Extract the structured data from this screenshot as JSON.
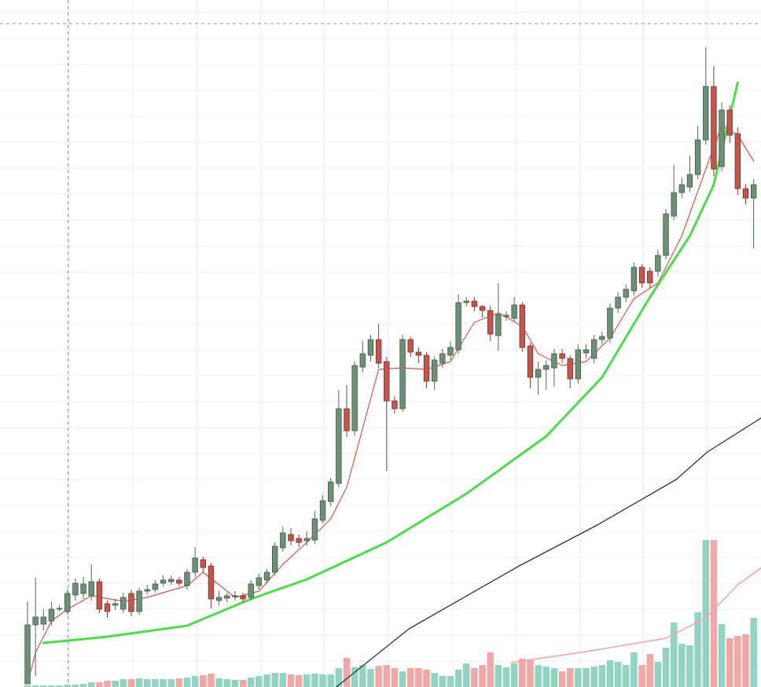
{
  "chart_data": {
    "type": "candlestick",
    "up_color": "#6e8f76",
    "down_color": "#c2554c",
    "up_volume_color": "#93d3c4",
    "down_volume_color": "#f0a8a6",
    "grid": true,
    "xlim": [
      -3.45,
      91.92
    ],
    "ylim": [
      0,
      874
    ],
    "xticks": [
      5.2,
      13.2,
      21.2,
      29.2,
      37.2,
      45.2,
      53.2,
      61.2,
      69.2,
      77.2,
      85.2
    ],
    "yticks": [
      33,
      66,
      99,
      132,
      165,
      198,
      231,
      264,
      297,
      330,
      363,
      396,
      429,
      462,
      495,
      528,
      561,
      594,
      627,
      660,
      693,
      726,
      759,
      792,
      825,
      858
    ],
    "crosshair": {
      "x": 5.1,
      "y": 844,
      "color": "#7a95a8"
    },
    "open": [
      4,
      79,
      80,
      84,
      99,
      96,
      117,
      119,
      116,
      134,
      106,
      104,
      99,
      119,
      96,
      122,
      124,
      132,
      134,
      136,
      129,
      146,
      162,
      154,
      110,
      113,
      115,
      116,
      114,
      129,
      136,
      146,
      177,
      194,
      189,
      186,
      187,
      212,
      236,
      259,
      354,
      326,
      407,
      422,
      442,
      414,
      364,
      354,
      442,
      426,
      422,
      389,
      412,
      422,
      429,
      489,
      491,
      484,
      479,
      447,
      471,
      469,
      486,
      434,
      394,
      404,
      406,
      424,
      418,
      392,
      425,
      418,
      442,
      444,
      482,
      496,
      504,
      534,
      529,
      529,
      549,
      599,
      629,
      636,
      652,
      696,
      764,
      662,
      734,
      704,
      634,
      622
    ],
    "high": [
      109,
      139,
      99,
      108,
      104,
      124,
      138,
      140,
      156,
      138,
      110,
      112,
      120,
      124,
      126,
      130,
      136,
      142,
      142,
      140,
      150,
      178,
      166,
      158,
      122,
      120,
      122,
      120,
      136,
      144,
      150,
      184,
      204,
      202,
      194,
      198,
      224,
      244,
      266,
      378,
      384,
      414,
      440,
      448,
      462,
      420,
      370,
      448,
      446,
      432,
      426,
      420,
      430,
      440,
      500,
      496,
      496,
      486,
      485,
      514,
      478,
      496,
      490,
      438,
      414,
      416,
      430,
      430,
      422,
      436,
      436,
      448,
      452,
      488,
      502,
      512,
      540,
      538,
      534,
      556,
      608,
      664,
      648,
      676,
      714,
      814,
      790,
      744,
      740,
      712,
      640,
      646
    ],
    "low": [
      4,
      14,
      72,
      78,
      96,
      92,
      110,
      112,
      110,
      94,
      88,
      98,
      94,
      90,
      92,
      118,
      120,
      128,
      130,
      128,
      124,
      140,
      146,
      100,
      104,
      108,
      110,
      108,
      110,
      124,
      132,
      142,
      172,
      180,
      178,
      180,
      182,
      208,
      230,
      254,
      318,
      320,
      400,
      414,
      406,
      275,
      348,
      350,
      420,
      412,
      380,
      378,
      406,
      416,
      424,
      484,
      478,
      470,
      440,
      428,
      466,
      464,
      426,
      380,
      372,
      378,
      382,
      412,
      380,
      386,
      418,
      412,
      436,
      438,
      476,
      490,
      498,
      508,
      508,
      522,
      544,
      594,
      622,
      630,
      646,
      690,
      650,
      656,
      692,
      626,
      614,
      558
    ],
    "close": [
      79,
      89,
      89,
      99,
      100,
      119,
      132,
      131,
      134,
      99,
      96,
      106,
      114,
      96,
      122,
      124,
      131,
      136,
      137,
      132,
      146,
      164,
      152,
      112,
      114,
      116,
      116,
      112,
      131,
      139,
      146,
      179,
      196,
      186,
      184,
      189,
      214,
      237,
      261,
      354,
      326,
      409,
      424,
      442,
      412,
      364,
      354,
      442,
      426,
      422,
      389,
      416,
      424,
      432,
      489,
      491,
      484,
      479,
      449,
      474,
      473,
      486,
      432,
      394,
      404,
      409,
      424,
      418,
      392,
      429,
      429,
      442,
      446,
      482,
      496,
      506,
      534,
      514,
      514,
      549,
      602,
      629,
      639,
      652,
      696,
      764,
      659,
      734,
      702,
      634,
      622,
      639
    ],
    "volume": [
      2,
      2,
      2,
      2,
      2,
      3,
      3,
      4,
      6,
      6,
      8,
      8,
      10,
      10,
      11,
      10,
      10,
      10,
      10,
      11,
      12,
      14,
      15,
      17,
      11,
      10,
      9,
      9,
      12,
      14,
      16,
      18,
      18,
      16,
      15,
      16,
      17,
      16,
      16,
      24,
      37,
      25,
      28,
      23,
      27,
      28,
      24,
      20,
      24,
      24,
      22,
      18,
      14,
      14,
      22,
      30,
      24,
      28,
      44,
      28,
      25,
      30,
      36,
      34,
      28,
      26,
      24,
      20,
      24,
      24,
      24,
      26,
      28,
      34,
      32,
      28,
      44,
      28,
      42,
      32,
      50,
      82,
      55,
      53,
      95,
      187,
      187,
      80,
      62,
      65,
      67,
      88
    ],
    "lines": [
      {
        "color": "#d9534f",
        "width": 1.2,
        "x": [
          0,
          1,
          3,
          5,
          8,
          12,
          15,
          20,
          22,
          26,
          29,
          32,
          35,
          38,
          40,
          42,
          44,
          47,
          50,
          53,
          56,
          59,
          62,
          64,
          67,
          70,
          73,
          76,
          79,
          82,
          85,
          87,
          89,
          91
        ],
        "values": [
          4,
          44,
          84,
          99,
          116,
          109,
          114,
          129,
          146,
          114,
          122,
          156,
          184,
          214,
          254,
          329,
          404,
          406,
          404,
          414,
          464,
          476,
          459,
          424,
          409,
          414,
          444,
          494,
          514,
          574,
          659,
          714,
          702,
          669
        ]
      },
      {
        "color": "#4ddb4d",
        "width": 3,
        "x": [
          2,
          10,
          20,
          28,
          35,
          45,
          55,
          65,
          72,
          78,
          83,
          86,
          89
        ],
        "values": [
          56,
          64,
          78,
          112,
          137,
          184,
          246,
          319,
          394,
          496,
          574,
          639,
          769
        ]
      },
      {
        "color": "#1f3a36",
        "width": 1.3,
        "x": [
          38.7,
          47.8,
          61.6,
          71.4,
          81.3,
          85.2,
          91.9
        ],
        "values": [
          0,
          74,
          154,
          206,
          264,
          299,
          342
        ]
      },
      {
        "color": "#f2a3a1",
        "width": 1.5,
        "x": [
          60.6,
          70,
          80,
          85,
          89,
          92
        ],
        "values": [
          31,
          45,
          62,
          88,
          130,
          152
        ]
      }
    ]
  }
}
